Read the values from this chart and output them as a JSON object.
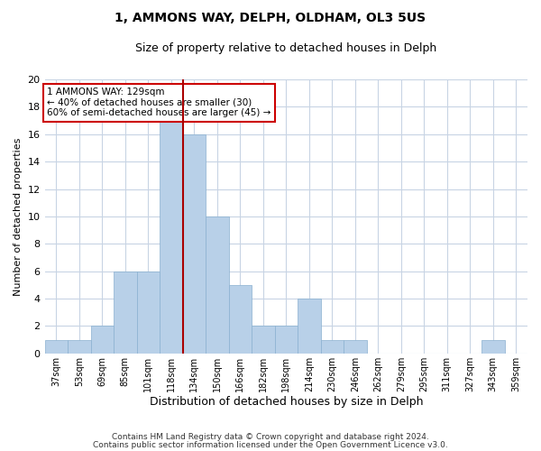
{
  "title": "1, AMMONS WAY, DELPH, OLDHAM, OL3 5US",
  "subtitle": "Size of property relative to detached houses in Delph",
  "xlabel": "Distribution of detached houses by size in Delph",
  "ylabel": "Number of detached properties",
  "bar_labels": [
    "37sqm",
    "53sqm",
    "69sqm",
    "85sqm",
    "101sqm",
    "118sqm",
    "134sqm",
    "150sqm",
    "166sqm",
    "182sqm",
    "198sqm",
    "214sqm",
    "230sqm",
    "246sqm",
    "262sqm",
    "279sqm",
    "295sqm",
    "311sqm",
    "327sqm",
    "343sqm",
    "359sqm"
  ],
  "bar_heights": [
    1,
    1,
    2,
    6,
    6,
    17,
    16,
    10,
    5,
    2,
    2,
    4,
    1,
    1,
    0,
    0,
    0,
    0,
    0,
    1,
    0
  ],
  "bar_color": "#b8d0e8",
  "bar_edge_color": "#8ab0d0",
  "highlight_line_color": "#aa0000",
  "ylim": [
    0,
    20
  ],
  "yticks": [
    0,
    2,
    4,
    6,
    8,
    10,
    12,
    14,
    16,
    18,
    20
  ],
  "annotation_text": "1 AMMONS WAY: 129sqm\n← 40% of detached houses are smaller (30)\n60% of semi-detached houses are larger (45) →",
  "annotation_box_color": "#ffffff",
  "annotation_box_edge": "#cc0000",
  "footer_line1": "Contains HM Land Registry data © Crown copyright and database right 2024.",
  "footer_line2": "Contains public sector information licensed under the Open Government Licence v3.0.",
  "background_color": "#ffffff",
  "grid_color": "#c8d4e4"
}
